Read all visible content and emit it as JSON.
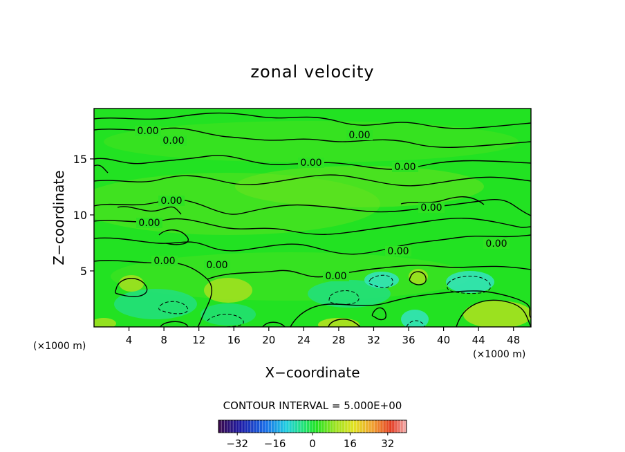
{
  "chart_data": {
    "type": "heatmap",
    "title": "zonal velocity",
    "xlabel": "X−coordinate",
    "ylabel": "Z−coordinate",
    "x_unit_left": "(×1000 m)",
    "x_unit_right": "(×1000 m)",
    "xlim": [
      0,
      50
    ],
    "ylim": [
      0,
      19.5
    ],
    "x_ticks": [
      4,
      8,
      12,
      16,
      20,
      24,
      28,
      32,
      36,
      40,
      44,
      48
    ],
    "y_ticks": [
      5,
      10,
      15
    ],
    "contour_interval_text": "CONTOUR INTERVAL = 5.000E+00",
    "contour_label": "0.00",
    "colorbar": {
      "ticks": [
        -32,
        -16,
        0,
        16,
        32
      ],
      "tick_labels": [
        "−32",
        "−16",
        "0",
        "16",
        "32"
      ],
      "range": [
        -40,
        40
      ]
    },
    "colors": {
      "background_field": "#22e222",
      "light_green": "#7fe21d",
      "teal": "#22e07a",
      "cyan": "#33e3b8",
      "yellow_green": "#b4e11f",
      "contour_line": "#000000"
    }
  }
}
